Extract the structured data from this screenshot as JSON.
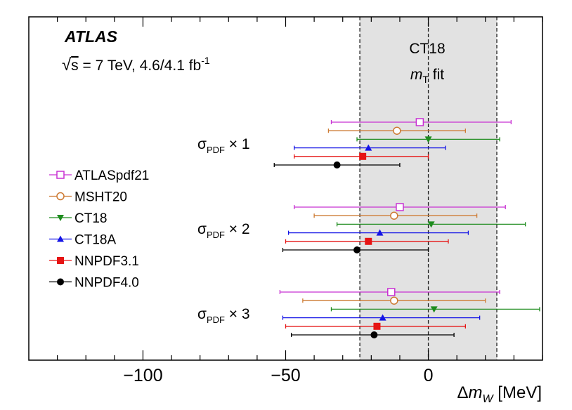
{
  "chart_data": {
    "type": "scatter",
    "title": "ATLAS",
    "subtitle": {
      "sqrt": "√",
      "s": "s",
      "rest": " = 7 TeV, 4.6/4.1 fb",
      "sup": "-1"
    },
    "band": {
      "name": "CT18",
      "label_line1": "CT18",
      "label_m": "m",
      "label_sub": "T",
      "label_rest": " fit",
      "low": -24,
      "high": 24,
      "center": 0
    },
    "xlabel": {
      "delta": "Δ",
      "m": "m",
      "sub": "W",
      "unit": " [MeV]"
    },
    "xlim": [
      -140,
      40
    ],
    "xticks": [
      {
        "value": -100,
        "label": "−100"
      },
      {
        "value": -50,
        "label": "−50"
      },
      {
        "value": 0,
        "label": "0"
      }
    ],
    "groups": [
      {
        "sigma": "σ",
        "sub": "PDF",
        "times": " × ",
        "factor": "1"
      },
      {
        "sigma": "σ",
        "sub": "PDF",
        "times": " × ",
        "factor": "2"
      },
      {
        "sigma": "σ",
        "sub": "PDF",
        "times": " × ",
        "factor": "3"
      }
    ],
    "series": [
      {
        "name": "ATLASpdf21",
        "color": "#c832d2",
        "marker": "open-square",
        "points": [
          {
            "group": 0,
            "x": -3,
            "lo": -34,
            "hi": 29
          },
          {
            "group": 1,
            "x": -10,
            "lo": -47,
            "hi": 27
          },
          {
            "group": 2,
            "x": -13,
            "lo": -52,
            "hi": 25
          }
        ]
      },
      {
        "name": "MSHT20",
        "color": "#cd7a32",
        "marker": "open-circle",
        "points": [
          {
            "group": 0,
            "x": -11,
            "lo": -35,
            "hi": 13
          },
          {
            "group": 1,
            "x": -12,
            "lo": -40,
            "hi": 17
          },
          {
            "group": 2,
            "x": -12,
            "lo": -44,
            "hi": 20
          }
        ]
      },
      {
        "name": "CT18",
        "color": "#1e8c1e",
        "marker": "down-triangle",
        "points": [
          {
            "group": 0,
            "x": 0,
            "lo": -25,
            "hi": 25
          },
          {
            "group": 1,
            "x": 1,
            "lo": -32,
            "hi": 34
          },
          {
            "group": 2,
            "x": 2,
            "lo": -34,
            "hi": 39
          }
        ]
      },
      {
        "name": "CT18A",
        "color": "#1414e6",
        "marker": "up-triangle",
        "points": [
          {
            "group": 0,
            "x": -21,
            "lo": -47,
            "hi": 6
          },
          {
            "group": 1,
            "x": -17,
            "lo": -49,
            "hi": 14
          },
          {
            "group": 2,
            "x": -16,
            "lo": -51,
            "hi": 18
          }
        ]
      },
      {
        "name": "NNPDF3.1",
        "color": "#e61414",
        "marker": "square",
        "points": [
          {
            "group": 0,
            "x": -23,
            "lo": -47,
            "hi": 0
          },
          {
            "group": 1,
            "x": -21,
            "lo": -50,
            "hi": 7
          },
          {
            "group": 2,
            "x": -18,
            "lo": -50,
            "hi": 13
          }
        ]
      },
      {
        "name": "NNPDF4.0",
        "color": "#000000",
        "marker": "circle",
        "points": [
          {
            "group": 0,
            "x": -32,
            "lo": -54,
            "hi": -10
          },
          {
            "group": 1,
            "x": -25,
            "lo": -51,
            "hi": 0
          },
          {
            "group": 2,
            "x": -19,
            "lo": -48,
            "hi": 9
          }
        ]
      }
    ]
  }
}
